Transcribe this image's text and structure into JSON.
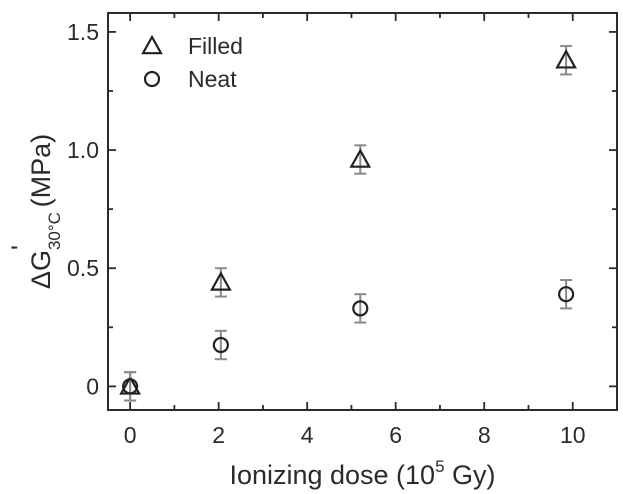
{
  "chart_data": {
    "type": "scatter",
    "xlabel": {
      "prefix": "Ionizing dose (10",
      "sup": "5",
      "suffix": " Gy)"
    },
    "ylabel": {
      "prefix": "ΔG",
      "sub": "30°C",
      "prime": "'",
      "suffix": " (MPa)"
    },
    "xlim": [
      -0.5,
      11
    ],
    "ylim": [
      -0.1,
      1.58
    ],
    "xticks": [
      "0",
      "2",
      "4",
      "6",
      "8",
      "10"
    ],
    "yticks": [
      "0",
      "0.5",
      "1.0",
      "1.5"
    ],
    "ytick_values": [
      0,
      0.5,
      1.0,
      1.5
    ],
    "grid": false,
    "legend_position": "top-left",
    "series": [
      {
        "name": "Filled",
        "marker": "triangle",
        "x": [
          0,
          2.05,
          5.2,
          9.85
        ],
        "y": [
          0.0,
          0.44,
          0.96,
          1.38
        ],
        "yerr": [
          0.06,
          0.06,
          0.06,
          0.06
        ]
      },
      {
        "name": "Neat",
        "marker": "circle",
        "x": [
          0,
          2.05,
          5.2,
          9.85
        ],
        "y": [
          0.0,
          0.175,
          0.33,
          0.39
        ],
        "yerr": [
          0.06,
          0.06,
          0.06,
          0.06
        ]
      }
    ],
    "colors": {
      "axis": "#2b2b2b",
      "marker": "#222222",
      "errorbar": "#8a8a8a"
    }
  }
}
